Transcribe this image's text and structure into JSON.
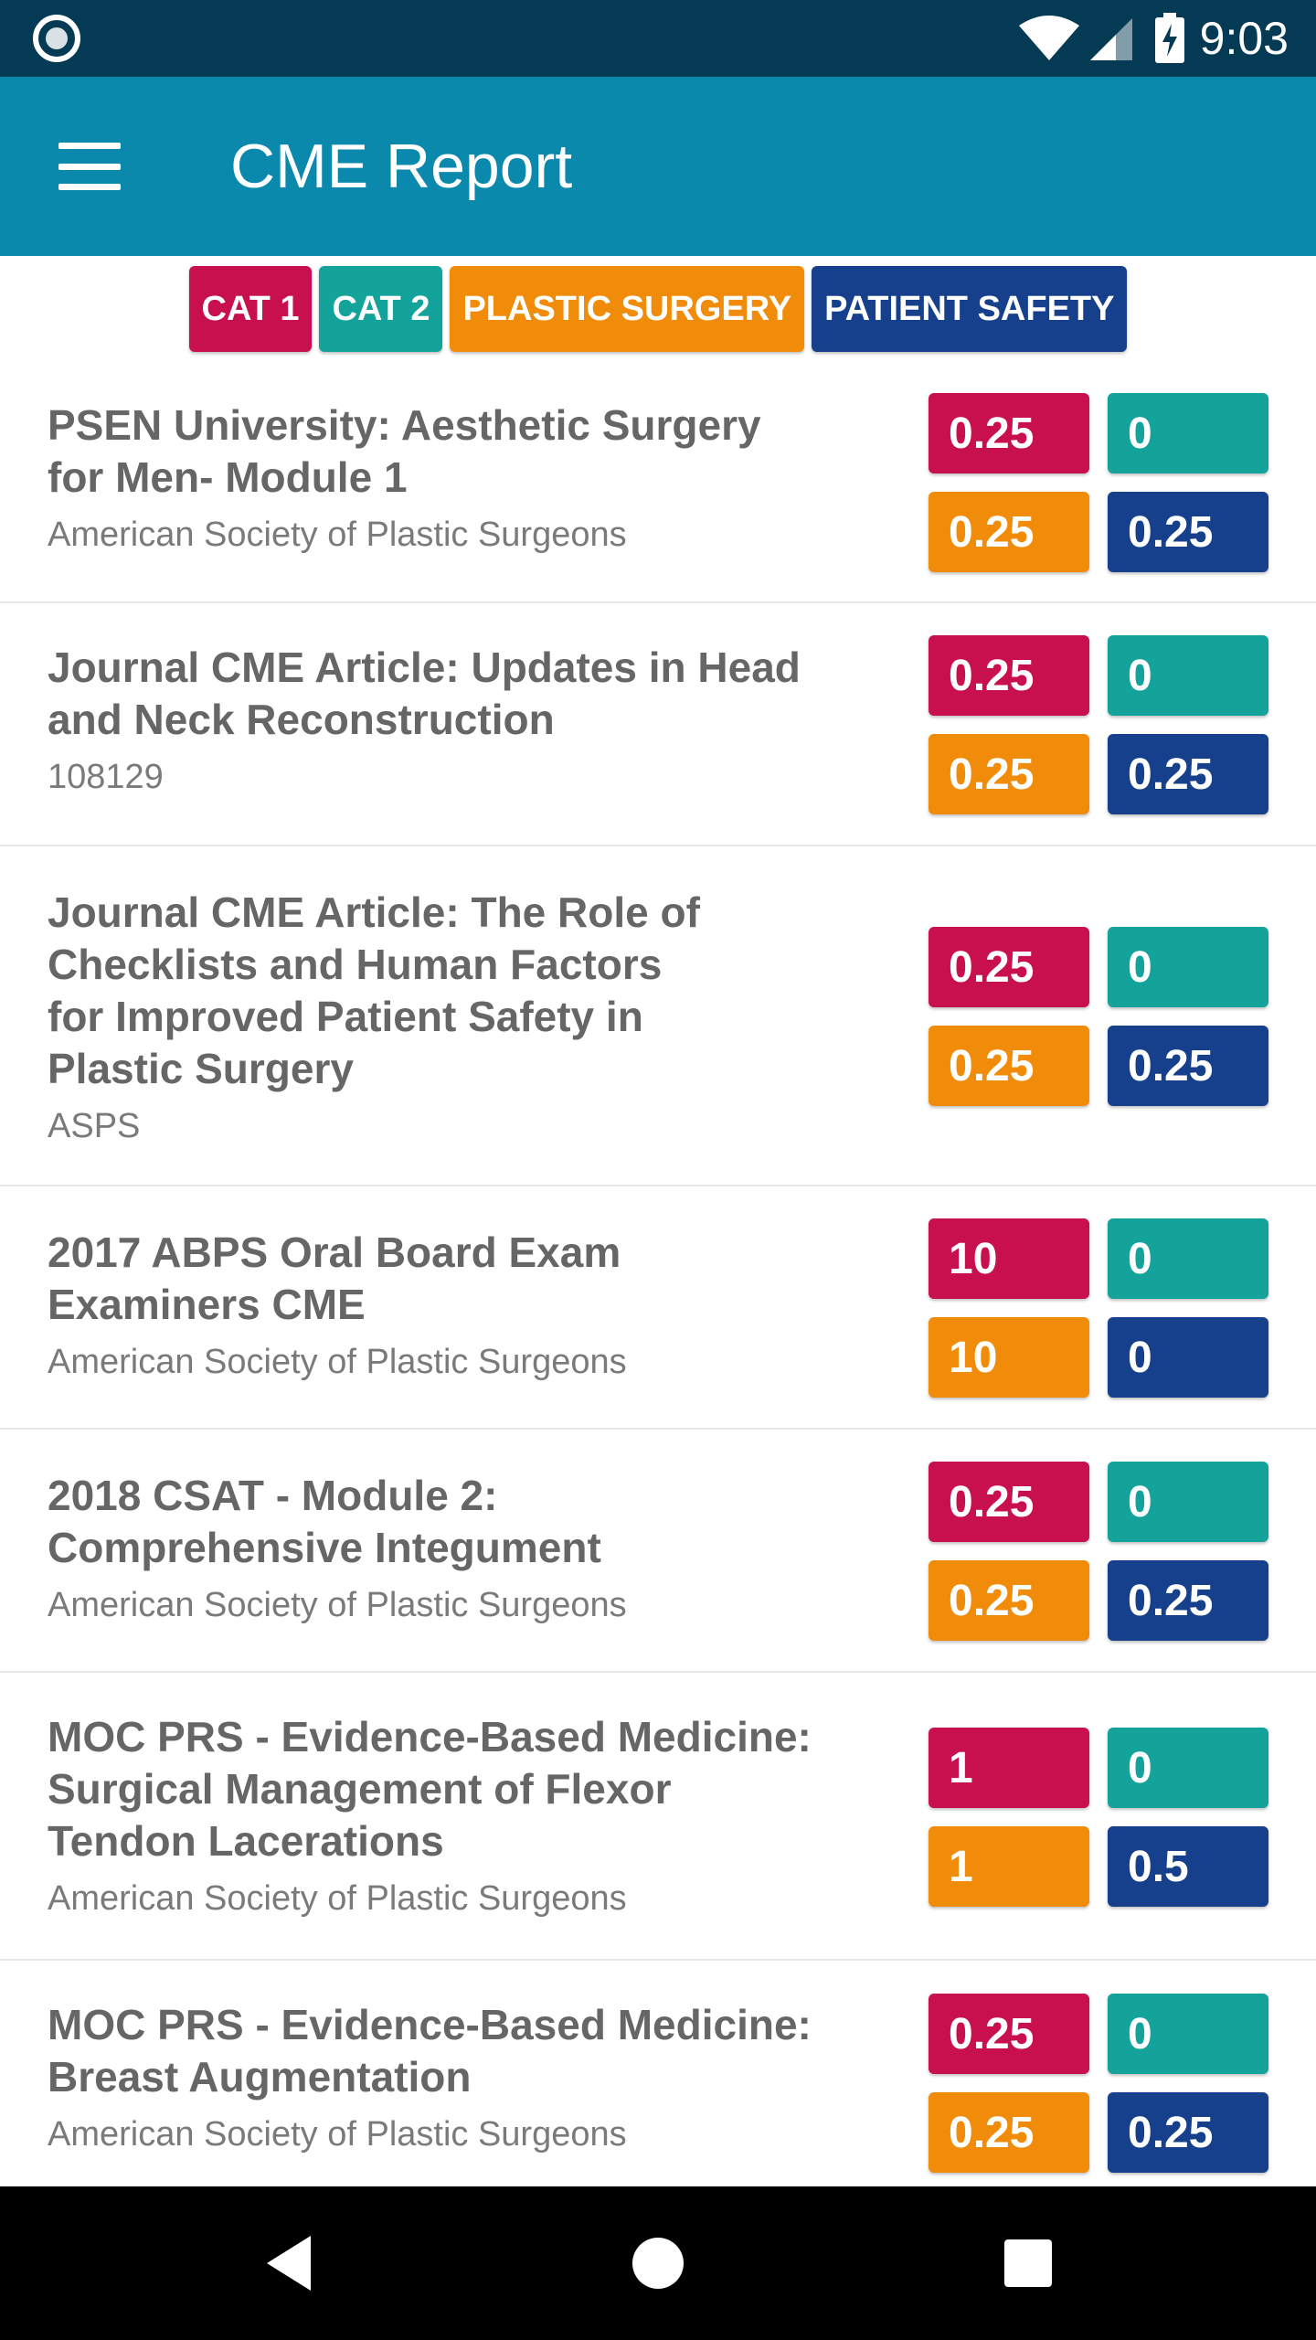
{
  "status_bar": {
    "time": "9:03",
    "icons": [
      "record-icon",
      "wifi-icon",
      "signal-icon",
      "battery-charging-icon"
    ]
  },
  "app_bar": {
    "title": "CME Report",
    "menu_icon": "hamburger-menu-icon"
  },
  "legend": [
    {
      "label": "CAT 1",
      "color": "#c8104f"
    },
    {
      "label": "CAT 2",
      "color": "#14a39b"
    },
    {
      "label": "PLASTIC SURGERY",
      "color": "#f08c0a"
    },
    {
      "label": "PATIENT SAFETY",
      "color": "#163f8c"
    }
  ],
  "records": [
    {
      "title": "PSEN University: Aesthetic Surgery for Men- Module 1",
      "title_lines": [
        "PSEN University: Aesthetic Surgery",
        "for Men- Module 1"
      ],
      "provider": "American Society of Plastic Surgeons",
      "cat1": "0.25",
      "cat2": "0",
      "plastic_surgery": "0.25",
      "patient_safety": "0.25"
    },
    {
      "title": "Journal CME Article: Updates in Head and Neck Reconstruction",
      "title_lines": [
        "Journal CME Article: Updates in Head",
        "and Neck Reconstruction"
      ],
      "provider": "108129",
      "cat1": "0.25",
      "cat2": "0",
      "plastic_surgery": "0.25",
      "patient_safety": "0.25"
    },
    {
      "title": "Journal CME Article: The Role of Checklists and Human Factors for Improved Patient Safety in Plastic Surgery",
      "title_lines": [
        "Journal CME Article: The Role of",
        "Checklists and Human Factors",
        "for Improved Patient Safety in",
        "Plastic Surgery"
      ],
      "provider": "ASPS",
      "cat1": "0.25",
      "cat2": "0",
      "plastic_surgery": "0.25",
      "patient_safety": "0.25"
    },
    {
      "title": "2017 ABPS Oral Board Exam Examiners CME",
      "title_lines": [
        "2017 ABPS Oral Board Exam",
        "Examiners CME"
      ],
      "provider": "American Society of Plastic Surgeons",
      "cat1": "10",
      "cat2": "0",
      "plastic_surgery": "10",
      "patient_safety": "0"
    },
    {
      "title": "2018 CSAT - Module 2: Comprehensive Integument",
      "title_lines": [
        "2018 CSAT - Module 2:",
        "Comprehensive Integument"
      ],
      "provider": "American Society of Plastic Surgeons",
      "cat1": "0.25",
      "cat2": "0",
      "plastic_surgery": "0.25",
      "patient_safety": "0.25"
    },
    {
      "title": "MOC PRS - Evidence-Based Medicine: Surgical Management of Flexor Tendon Lacerations",
      "title_lines": [
        "MOC PRS - Evidence-Based Medicine:",
        "Surgical Management of Flexor",
        "Tendon Lacerations"
      ],
      "provider": "American Society of Plastic Surgeons",
      "cat1": "1",
      "cat2": "0",
      "plastic_surgery": "1",
      "patient_safety": "0.5"
    },
    {
      "title": "MOC PRS - Evidence-Based Medicine: Breast Augmentation",
      "title_lines": [
        "MOC PRS - Evidence-Based Medicine:",
        "Breast Augmentation"
      ],
      "provider": "American Society of Plastic Surgeons",
      "cat1": "0.25",
      "cat2": "0",
      "plastic_surgery": "0.25",
      "patient_safety": "0.25"
    }
  ],
  "nav_bar": {
    "buttons": [
      "back-icon",
      "home-icon",
      "recents-icon"
    ]
  }
}
